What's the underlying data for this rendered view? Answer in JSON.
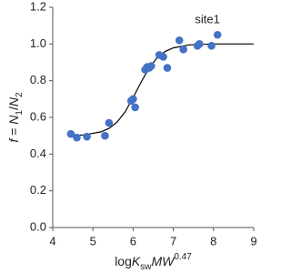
{
  "chart_data": {
    "type": "scatter",
    "x_label": [
      {
        "text": "log"
      },
      {
        "text": "K",
        "italic": true
      },
      {
        "text": "sw",
        "shift": "sub"
      },
      {
        "text": "MW",
        "italic": true
      },
      {
        "text": "0.47",
        "shift": "super"
      }
    ],
    "y_label": [
      {
        "text": "f",
        "italic": true
      },
      {
        "text": " = "
      },
      {
        "text": "N",
        "italic": true
      },
      {
        "text": "1",
        "shift": "sub"
      },
      {
        "text": "/"
      },
      {
        "text": "N",
        "italic": true
      },
      {
        "text": "2",
        "shift": "sub"
      }
    ],
    "series": [
      {
        "name": "site1",
        "color": "#4472c4",
        "x": [
          4.45,
          4.6,
          4.85,
          5.3,
          5.4,
          5.95,
          6.0,
          6.05,
          6.3,
          6.35,
          6.4,
          6.45,
          6.65,
          6.75,
          6.85,
          7.15,
          7.25,
          7.6,
          7.65,
          7.95,
          8.1
        ],
        "values": [
          0.51,
          0.49,
          0.495,
          0.5,
          0.57,
          0.69,
          0.7,
          0.655,
          0.86,
          0.875,
          0.87,
          0.88,
          0.94,
          0.93,
          0.87,
          1.02,
          0.97,
          0.99,
          1.0,
          0.99,
          1.05
        ]
      }
    ],
    "curve": {
      "color": "#000000",
      "x": [
        4.4,
        4.8,
        5.2,
        5.4,
        5.6,
        5.8,
        6.0,
        6.2,
        6.4,
        6.6,
        6.8,
        7.0,
        7.4,
        8,
        9
      ],
      "y": [
        0.5,
        0.505,
        0.521,
        0.54,
        0.574,
        0.63,
        0.707,
        0.793,
        0.87,
        0.926,
        0.96,
        0.979,
        0.995,
        1.0,
        1.0
      ]
    },
    "xlim": [
      4,
      9
    ],
    "xticks": [
      4,
      5,
      6,
      7,
      8,
      9
    ],
    "ylim": [
      0,
      1.2
    ],
    "yticks": [
      {
        "value": 0,
        "label": "0.0"
      },
      {
        "value": 0.2,
        "label": "0.2"
      },
      {
        "value": 0.4,
        "label": "0.4"
      },
      {
        "value": 0.6,
        "label": "0.6"
      },
      {
        "value": 0.8,
        "label": "0.8"
      },
      {
        "value": 1.0,
        "label": "1.0"
      },
      {
        "value": 1.2,
        "label": "1.2"
      }
    ],
    "grid": false
  }
}
